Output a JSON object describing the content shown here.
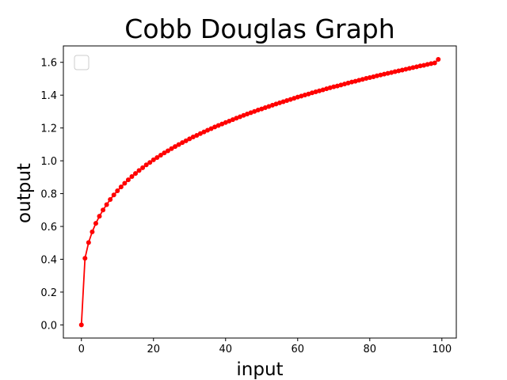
{
  "chart_data": {
    "type": "line",
    "title": "Cobb Douglas Graph",
    "xlabel": "input",
    "ylabel": "output",
    "xlim": [
      -5,
      104
    ],
    "ylim": [
      -0.08,
      1.7
    ],
    "x_ticks": [
      0,
      20,
      40,
      60,
      80,
      100
    ],
    "y_ticks": [
      0.0,
      0.2,
      0.4,
      0.6,
      0.8,
      1.0,
      1.2,
      1.4,
      1.6
    ],
    "y_tick_labels": [
      "0.0",
      "0.2",
      "0.4",
      "0.6",
      "0.8",
      "1.0",
      "1.2",
      "1.4",
      "1.6"
    ],
    "grid": false,
    "legend_position": "top-left",
    "legend_entries": [],
    "series": [
      {
        "color": "#ff0000",
        "marker": "circle",
        "x": [
          0,
          1,
          2,
          3,
          4,
          5,
          6,
          7,
          8,
          9,
          10,
          11,
          12,
          13,
          14,
          15,
          16,
          17,
          18,
          19,
          20,
          21,
          22,
          23,
          24,
          25,
          26,
          27,
          28,
          29,
          30,
          31,
          32,
          33,
          34,
          35,
          36,
          37,
          38,
          39,
          40,
          41,
          42,
          43,
          44,
          45,
          46,
          47,
          48,
          49,
          50,
          51,
          52,
          53,
          54,
          55,
          56,
          57,
          58,
          59,
          60,
          61,
          62,
          63,
          64,
          65,
          66,
          67,
          68,
          69,
          70,
          71,
          72,
          73,
          74,
          75,
          76,
          77,
          78,
          79,
          80,
          81,
          82,
          83,
          84,
          85,
          86,
          87,
          88,
          89,
          90,
          91,
          92,
          93,
          94,
          95,
          96,
          97,
          98,
          99
        ],
        "y": [
          0.0,
          0.406,
          0.502,
          0.567,
          0.619,
          0.662,
          0.7,
          0.733,
          0.764,
          0.792,
          0.817,
          0.841,
          0.863,
          0.884,
          0.904,
          0.923,
          0.941,
          0.958,
          0.975,
          0.99,
          1.006,
          1.02,
          1.034,
          1.048,
          1.061,
          1.074,
          1.087,
          1.099,
          1.111,
          1.122,
          1.134,
          1.145,
          1.155,
          1.166,
          1.176,
          1.186,
          1.196,
          1.206,
          1.215,
          1.224,
          1.233,
          1.242,
          1.251,
          1.26,
          1.268,
          1.277,
          1.285,
          1.293,
          1.301,
          1.309,
          1.316,
          1.324,
          1.331,
          1.339,
          1.346,
          1.353,
          1.36,
          1.367,
          1.374,
          1.381,
          1.388,
          1.394,
          1.401,
          1.407,
          1.414,
          1.42,
          1.426,
          1.432,
          1.439,
          1.445,
          1.451,
          1.456,
          1.462,
          1.468,
          1.474,
          1.48,
          1.485,
          1.491,
          1.496,
          1.502,
          1.507,
          1.512,
          1.518,
          1.523,
          1.528,
          1.533,
          1.538,
          1.543,
          1.548,
          1.553,
          1.558,
          1.563,
          1.568,
          1.573,
          1.578,
          1.582,
          1.587,
          1.592,
          1.596,
          1.618
        ]
      }
    ]
  }
}
